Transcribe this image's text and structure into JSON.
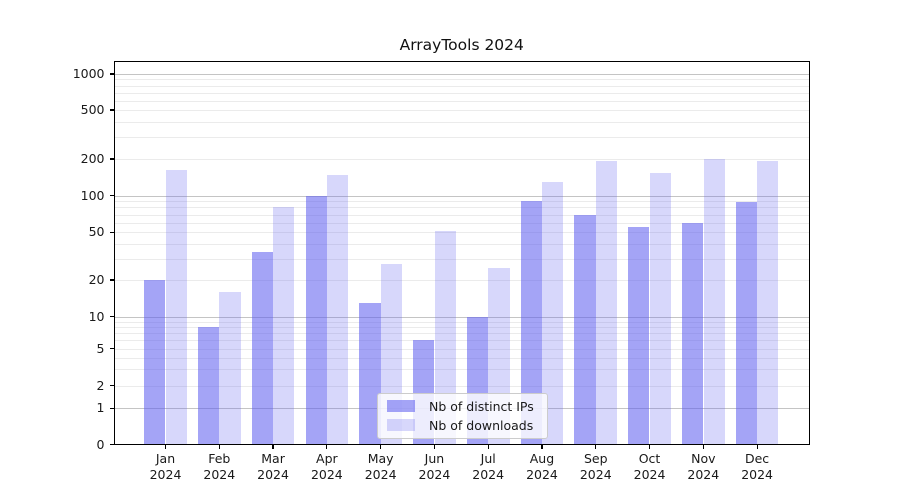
{
  "title": "ArrayTools 2024",
  "chart_data": {
    "type": "bar",
    "title": "ArrayTools 2024",
    "categories": [
      "Jan 2024",
      "Feb 2024",
      "Mar 2024",
      "Apr 2024",
      "May 2024",
      "Jun 2024",
      "Jul 2024",
      "Aug 2024",
      "Sep 2024",
      "Oct 2024",
      "Nov 2024",
      "Dec 2024"
    ],
    "series": [
      {
        "name": "Nb of distinct IPs",
        "color": "rgba(95,95,240,0.57)",
        "values": [
          20,
          8,
          34,
          100,
          13,
          6,
          10,
          90,
          70,
          55,
          60,
          89
        ]
      },
      {
        "name": "Nb of downloads",
        "color": "rgba(95,95,240,0.25)",
        "values": [
          162,
          16,
          80,
          148,
          27,
          51,
          25,
          130,
          192,
          154,
          200,
          192
        ]
      }
    ],
    "yscale": "symlog (log-like scale including 0)",
    "yticks": [
      0,
      1,
      2,
      5,
      10,
      20,
      50,
      100,
      200,
      500,
      1000
    ],
    "ylim": [
      0,
      1300
    ],
    "grid": "horizontal major and minor gridlines",
    "legend_position": "inside lower-center"
  },
  "colors": {
    "grid_major": "#c4c4c4",
    "grid_minor": "#ebebeb",
    "axis": "#000000",
    "text": "#1a1a1a",
    "background": "#ffffff"
  }
}
